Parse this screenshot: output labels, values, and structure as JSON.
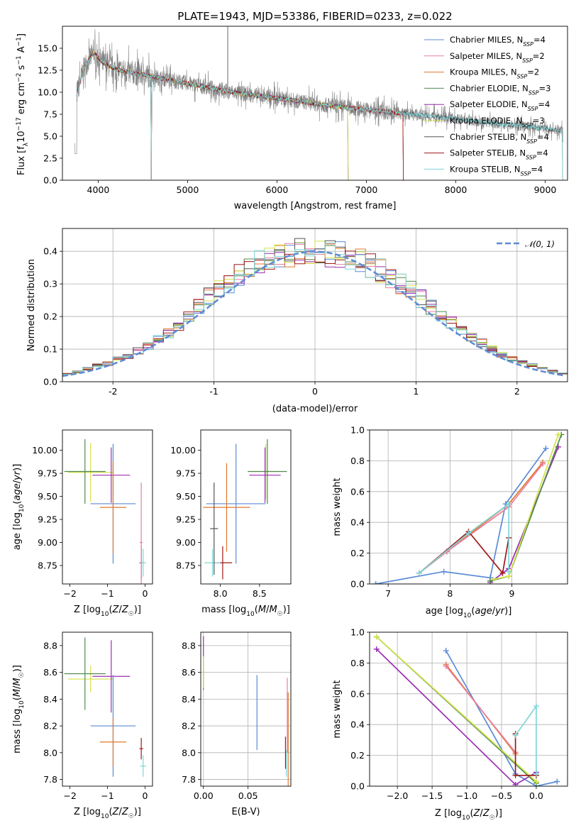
{
  "colors": {
    "Chabrier MILES": "#5b8bd6",
    "Salpeter MILES": "#e97fa0",
    "Kroupa MILES": "#e0782c",
    "Chabrier ELODIE": "#4f8a4f",
    "Salpeter ELODIE": "#9b2fb0",
    "Kroupa ELODIE": "#d4e24a",
    "Chabrier STELIB": "#555555",
    "Salpeter STELIB": "#a01818",
    "Kroupa STELIB": "#7fd6d9"
  },
  "chart_data": [
    {
      "id": "spectrum",
      "type": "line",
      "title": "PLATE=1943, MJD=53386, FIBERID=0233, z=0.022",
      "xlabel": "wavelength [Angstrom, rest frame]",
      "ylabel": "Flux [f_λ10^-17 erg cm^-2 s^-1 A^-1]",
      "xlim": [
        3600,
        9250
      ],
      "ylim": [
        0,
        17.5
      ],
      "xticks": [
        4000,
        5000,
        6000,
        7000,
        8000,
        9000
      ],
      "yticks": [
        0.0,
        2.5,
        5.0,
        7.5,
        10.0,
        12.5,
        15.0
      ],
      "ytick_labels": [
        "0.0",
        "2.5",
        "5.0",
        "7.5",
        "10.0",
        "12.5",
        "15.0"
      ],
      "legend_position": "top-right",
      "legend": [
        {
          "name": "Chabrier MILES",
          "nssp": "4"
        },
        {
          "name": "Salpeter MILES",
          "nssp": "2"
        },
        {
          "name": "Kroupa MILES",
          "nssp": "2"
        },
        {
          "name": "Chabrier ELODIE",
          "nssp": "3"
        },
        {
          "name": "Salpeter ELODIE",
          "nssp": "4"
        },
        {
          "name": "Kroupa ELODIE",
          "nssp": "3"
        },
        {
          "name": "Chabrier STELIB",
          "nssp": "4"
        },
        {
          "name": "Salpeter STELIB",
          "nssp": "4"
        },
        {
          "name": "Kroupa STELIB",
          "nssp": "4"
        }
      ],
      "model_profile": {
        "x": [
          3750,
          3850,
          3950,
          4050,
          4200,
          4400,
          4600,
          4800,
          5000,
          5200,
          5500,
          5800,
          6100,
          6500,
          7000,
          7500,
          8000,
          8500,
          9000,
          9200
        ],
        "y": [
          9.5,
          13.0,
          14.5,
          13.4,
          12.6,
          12.2,
          11.8,
          11.4,
          11.0,
          10.6,
          10.0,
          9.6,
          9.2,
          8.6,
          8.0,
          7.5,
          7.0,
          6.4,
          5.9,
          5.6
        ]
      },
      "model_ends": {
        "Chabrier MILES": 7420,
        "Salpeter MILES": 7420,
        "Kroupa MILES": 7420,
        "Chabrier ELODIE": 6800,
        "Salpeter ELODIE": 6800,
        "Kroupa ELODIE": 6800,
        "Chabrier STELIB": 9200,
        "Salpeter STELIB": 7420,
        "Kroupa STELIB": 9200
      }
    },
    {
      "id": "residuals",
      "type": "histogram",
      "xlabel": "(data-model)/error",
      "ylabel": "Normed distribution",
      "xlim": [
        -2.5,
        2.5
      ],
      "ylim": [
        0,
        0.47
      ],
      "xticks": [
        -2,
        -1,
        0,
        1,
        2
      ],
      "yticks": [
        0.0,
        0.1,
        0.2,
        0.3,
        0.4
      ],
      "ytick_labels": [
        "0.0",
        "0.1",
        "0.2",
        "0.3",
        "0.4"
      ],
      "grid": true,
      "bin_edges": [
        -2.5,
        -2.4,
        -2.3,
        -2.2,
        -2.1,
        -2.0,
        -1.9,
        -1.8,
        -1.7,
        -1.6,
        -1.5,
        -1.4,
        -1.3,
        -1.2,
        -1.1,
        -1.0,
        -0.9,
        -0.8,
        -0.7,
        -0.6,
        -0.5,
        -0.4,
        -0.3,
        -0.2,
        -0.1,
        0.0,
        0.1,
        0.2,
        0.3,
        0.4,
        0.5,
        0.6,
        0.7,
        0.8,
        0.9,
        1.0,
        1.1,
        1.2,
        1.3,
        1.4,
        1.5,
        1.6,
        1.7,
        1.8,
        1.9,
        2.0,
        2.1,
        2.2,
        2.3,
        2.4,
        2.5
      ],
      "base_counts": [
        0.025,
        0.03,
        0.04,
        0.05,
        0.055,
        0.07,
        0.08,
        0.095,
        0.11,
        0.13,
        0.15,
        0.175,
        0.2,
        0.23,
        0.26,
        0.285,
        0.305,
        0.33,
        0.35,
        0.37,
        0.38,
        0.39,
        0.395,
        0.4,
        0.4,
        0.4,
        0.395,
        0.39,
        0.38,
        0.37,
        0.355,
        0.34,
        0.32,
        0.3,
        0.28,
        0.255,
        0.23,
        0.205,
        0.18,
        0.16,
        0.14,
        0.12,
        0.1,
        0.085,
        0.07,
        0.06,
        0.05,
        0.04,
        0.032,
        0.025
      ],
      "legend": "𝒩(0, 1)",
      "legend_position": "top-right"
    },
    {
      "id": "age-vs-Z",
      "type": "errorbar",
      "xlabel": "Z [log10(Z/Z☉)]",
      "ylabel": "age [log10(age/yr)]",
      "xlim": [
        -2.2,
        0.2
      ],
      "ylim": [
        8.55,
        10.22
      ],
      "xticks": [
        -2,
        -1,
        0
      ],
      "xtick_labels": [
        "−2",
        "−1",
        "0"
      ],
      "yticks": [
        8.75,
        9.0,
        9.25,
        9.5,
        9.75,
        10.0
      ],
      "ytick_labels": [
        "8.75",
        "9.00",
        "9.25",
        "9.50",
        "9.75",
        "10.00"
      ],
      "points": [
        {
          "series": "Kroupa ELODIE",
          "x": -1.45,
          "xerr": 0.6,
          "y": 9.76,
          "yerr": 0.32
        },
        {
          "series": "Chabrier ELODIE",
          "x": -1.6,
          "xerr": 0.55,
          "y": 9.77,
          "yerr": 0.35
        },
        {
          "series": "Salpeter ELODIE",
          "x": -0.9,
          "xerr": 0.5,
          "y": 9.73,
          "yerr": 0.3
        },
        {
          "series": "Chabrier MILES",
          "x": -0.85,
          "xerr": 0.6,
          "y": 9.42,
          "yerr": 0.65
        },
        {
          "series": "Kroupa MILES",
          "x": -0.85,
          "xerr": 0.35,
          "y": 9.38,
          "yerr": 0.5
        },
        {
          "series": "Salpeter STELIB",
          "x": -0.1,
          "xerr": 0.05,
          "y": 8.78,
          "yerr": 0.18
        },
        {
          "series": "Kroupa STELIB",
          "x": -0.05,
          "xerr": 0.08,
          "y": 8.78,
          "yerr": 0.15
        },
        {
          "series": "Salpeter MILES",
          "x": -0.1,
          "xerr": 0.04,
          "y": 9.0,
          "yerr": 0.65
        }
      ]
    },
    {
      "id": "age-vs-mass",
      "type": "errorbar",
      "xlabel": "mass [log10(M/M☉)]",
      "ylabel": "",
      "xlim": [
        7.75,
        8.9
      ],
      "ylim": [
        8.55,
        10.22
      ],
      "xticks": [
        8.0,
        8.5
      ],
      "xtick_labels": [
        "8.0",
        "8.5"
      ],
      "yticks": [
        8.75,
        9.0,
        9.25,
        9.5,
        9.75,
        10.0
      ],
      "ytick_labels": [
        "8.75",
        "9.00",
        "9.25",
        "9.50",
        "9.75",
        "10.00"
      ],
      "points": [
        {
          "series": "Kroupa ELODIE",
          "x": 8.58,
          "xerr": 0.2,
          "y": 9.77,
          "yerr": 0.3
        },
        {
          "series": "Chabrier ELODIE",
          "x": 8.6,
          "xerr": 0.25,
          "y": 9.77,
          "yerr": 0.35
        },
        {
          "series": "Salpeter ELODIE",
          "x": 8.57,
          "xerr": 0.2,
          "y": 9.73,
          "yerr": 0.3
        },
        {
          "series": "Chabrier MILES",
          "x": 8.2,
          "xerr": 0.38,
          "y": 9.42,
          "yerr": 0.65
        },
        {
          "series": "Kroupa MILES",
          "x": 8.08,
          "xerr": 0.3,
          "y": 9.38,
          "yerr": 0.48
        },
        {
          "series": "Salpeter STELIB",
          "x": 8.03,
          "xerr": 0.12,
          "y": 8.78,
          "yerr": 0.18
        },
        {
          "series": "Kroupa STELIB",
          "x": 7.9,
          "xerr": 0.1,
          "y": 8.78,
          "yerr": 0.15
        },
        {
          "series": "Chabrier STELIB",
          "x": 7.92,
          "xerr": 0.05,
          "y": 9.15,
          "yerr": 0.5
        }
      ]
    },
    {
      "id": "weight-vs-age",
      "type": "line",
      "xlabel": "age [log10(age/yr)]",
      "ylabel": "mass weight",
      "xlim": [
        6.7,
        9.9
      ],
      "ylim": [
        0,
        1
      ],
      "xticks": [
        7,
        8,
        9
      ],
      "yticks": [
        0,
        0.2,
        0.4,
        0.6,
        0.8,
        1.0
      ],
      "ytick_labels": [
        "0.0",
        "0.2",
        "0.4",
        "0.6",
        "0.8",
        "1.0"
      ],
      "grid": true,
      "series": [
        {
          "name": "Chabrier MILES",
          "x": [
            6.8,
            7.9,
            8.65,
            8.9,
            9.55
          ],
          "y": [
            0.0,
            0.08,
            0.04,
            0.52,
            0.88
          ]
        },
        {
          "name": "Kroupa MILES",
          "x": [
            7.5,
            7.95,
            8.95,
            9.5
          ],
          "y": [
            0.07,
            0.21,
            0.52,
            0.79
          ]
        },
        {
          "name": "Salpeter MILES",
          "x": [
            7.5,
            7.95,
            8.95,
            9.5
          ],
          "y": [
            0.07,
            0.21,
            0.5,
            0.78
          ]
        },
        {
          "name": "Salpeter ELODIE",
          "x": [
            8.65,
            8.95,
            9.75
          ],
          "y": [
            0.01,
            0.1,
            0.89
          ]
        },
        {
          "name": "Chabrier ELODIE",
          "x": [
            8.65,
            8.95,
            9.8
          ],
          "y": [
            0.02,
            0.05,
            0.97
          ]
        },
        {
          "name": "Kroupa ELODIE",
          "x": [
            8.7,
            8.95,
            9.75
          ],
          "y": [
            0.03,
            0.05,
            0.97
          ]
        },
        {
          "name": "Salpeter STELIB",
          "x": [
            7.5,
            8.3,
            8.85,
            8.95
          ],
          "y": [
            0.07,
            0.34,
            0.07,
            0.3
          ]
        },
        {
          "name": "Kroupa STELIB",
          "x": [
            7.5,
            8.3,
            8.95,
            8.95
          ],
          "y": [
            0.07,
            0.33,
            0.52,
            0.08
          ]
        }
      ]
    },
    {
      "id": "mass-vs-Z",
      "type": "errorbar",
      "xlabel": "Z [log10(Z/Z☉)]",
      "ylabel": "mass [log10(M/M☉)]",
      "xlim": [
        -2.2,
        0.2
      ],
      "ylim": [
        7.75,
        8.9
      ],
      "xticks": [
        -2,
        -1,
        0
      ],
      "xtick_labels": [
        "−2",
        "−1",
        "0"
      ],
      "yticks": [
        7.8,
        8.0,
        8.2,
        8.4,
        8.6,
        8.8
      ],
      "ytick_labels": [
        "7.8",
        "8.0",
        "8.2",
        "8.4",
        "8.6",
        "8.8"
      ],
      "points": [
        {
          "series": "Kroupa ELODIE",
          "x": -1.45,
          "xerr": 0.6,
          "y": 8.55,
          "yerr": 0.1
        },
        {
          "series": "Chabrier ELODIE",
          "x": -1.6,
          "xerr": 0.55,
          "y": 8.59,
          "yerr": 0.27
        },
        {
          "series": "Salpeter ELODIE",
          "x": -0.9,
          "xerr": 0.5,
          "y": 8.57,
          "yerr": 0.27
        },
        {
          "series": "Chabrier MILES",
          "x": -0.85,
          "xerr": 0.6,
          "y": 8.2,
          "yerr": 0.38
        },
        {
          "series": "Kroupa MILES",
          "x": -0.85,
          "xerr": 0.35,
          "y": 8.08,
          "yerr": 0.18
        },
        {
          "series": "Salpeter STELIB",
          "x": -0.1,
          "xerr": 0.05,
          "y": 8.03,
          "yerr": 0.08
        },
        {
          "series": "Kroupa STELIB",
          "x": -0.05,
          "xerr": 0.08,
          "y": 7.9,
          "yerr": 0.08
        }
      ]
    },
    {
      "id": "mass-vs-EBV",
      "type": "errorbar",
      "xlabel": "E(B-V)",
      "ylabel": "",
      "xlim": [
        -0.003,
        0.098
      ],
      "ylim": [
        7.75,
        8.9
      ],
      "xticks": [
        0.0,
        0.05
      ],
      "xtick_labels": [
        "0.00",
        "0.05"
      ],
      "yticks": [
        7.8,
        8.0,
        8.2,
        8.4,
        8.6,
        8.8
      ],
      "ytick_labels": [
        "7.8",
        "8.0",
        "8.2",
        "8.4",
        "8.6",
        "8.8"
      ],
      "grid": true,
      "points": [
        {
          "series": "Salpeter ELODIE",
          "x": 0.0,
          "xerr": 0,
          "y": 8.67,
          "yerr": 0.2
        },
        {
          "series": "Kroupa ELODIE",
          "x": 0.0,
          "xerr": 0,
          "y": 8.6,
          "yerr": 0.12
        },
        {
          "series": "Chabrier MILES",
          "x": 0.06,
          "xerr": 0,
          "y": 8.3,
          "yerr": 0.28
        },
        {
          "series": "Salpeter MILES",
          "x": 0.094,
          "xerr": 0,
          "y": 8.28,
          "yerr": 0.28
        },
        {
          "series": "Kroupa MILES",
          "x": 0.095,
          "xerr": 0,
          "y": 8.1,
          "yerr": 0.35
        },
        {
          "series": "Salpeter STELIB",
          "x": 0.092,
          "xerr": 0,
          "y": 8.0,
          "yerr": 0.12
        },
        {
          "series": "Kroupa STELIB",
          "x": 0.093,
          "xerr": 0,
          "y": 7.92,
          "yerr": 0.1
        }
      ]
    },
    {
      "id": "weight-vs-Z",
      "type": "line",
      "xlabel": "Z [log10(Z/Z☉)]",
      "ylabel": "mass weight",
      "xlim": [
        -2.4,
        0.45
      ],
      "ylim": [
        0,
        1
      ],
      "xticks": [
        -2.0,
        -1.5,
        -1.0,
        -0.5,
        0.0
      ],
      "xtick_labels": [
        "−2.0",
        "−1.5",
        "−1.0",
        "−0.5",
        "0.0"
      ],
      "yticks": [
        0,
        0.2,
        0.4,
        0.6,
        0.8,
        1.0
      ],
      "ytick_labels": [
        "0.0",
        "0.2",
        "0.4",
        "0.6",
        "0.8",
        "1.0"
      ],
      "grid": true,
      "series": [
        {
          "name": "Chabrier MILES",
          "x": [
            -1.3,
            -0.3,
            0.0,
            0.3
          ],
          "y": [
            0.88,
            0.08,
            0.0,
            0.03
          ]
        },
        {
          "name": "Kroupa MILES",
          "x": [
            -1.3,
            -0.3
          ],
          "y": [
            0.79,
            0.21
          ]
        },
        {
          "name": "Salpeter MILES",
          "x": [
            -1.3,
            -0.3
          ],
          "y": [
            0.78,
            0.22
          ]
        },
        {
          "name": "Salpeter ELODIE",
          "x": [
            -2.3,
            -0.3,
            0.0
          ],
          "y": [
            0.89,
            0.01,
            0.09
          ]
        },
        {
          "name": "Chabrier ELODIE",
          "x": [
            -2.3,
            0.0
          ],
          "y": [
            0.97,
            0.02
          ]
        },
        {
          "name": "Kroupa ELODIE",
          "x": [
            -2.3,
            0.0
          ],
          "y": [
            0.97,
            0.03
          ]
        },
        {
          "name": "Salpeter STELIB",
          "x": [
            -0.3,
            -0.3,
            0.0
          ],
          "y": [
            0.34,
            0.07,
            0.07
          ]
        },
        {
          "name": "Kroupa STELIB",
          "x": [
            -0.3,
            0.0,
            0.0
          ],
          "y": [
            0.33,
            0.52,
            0.08
          ]
        }
      ]
    }
  ]
}
